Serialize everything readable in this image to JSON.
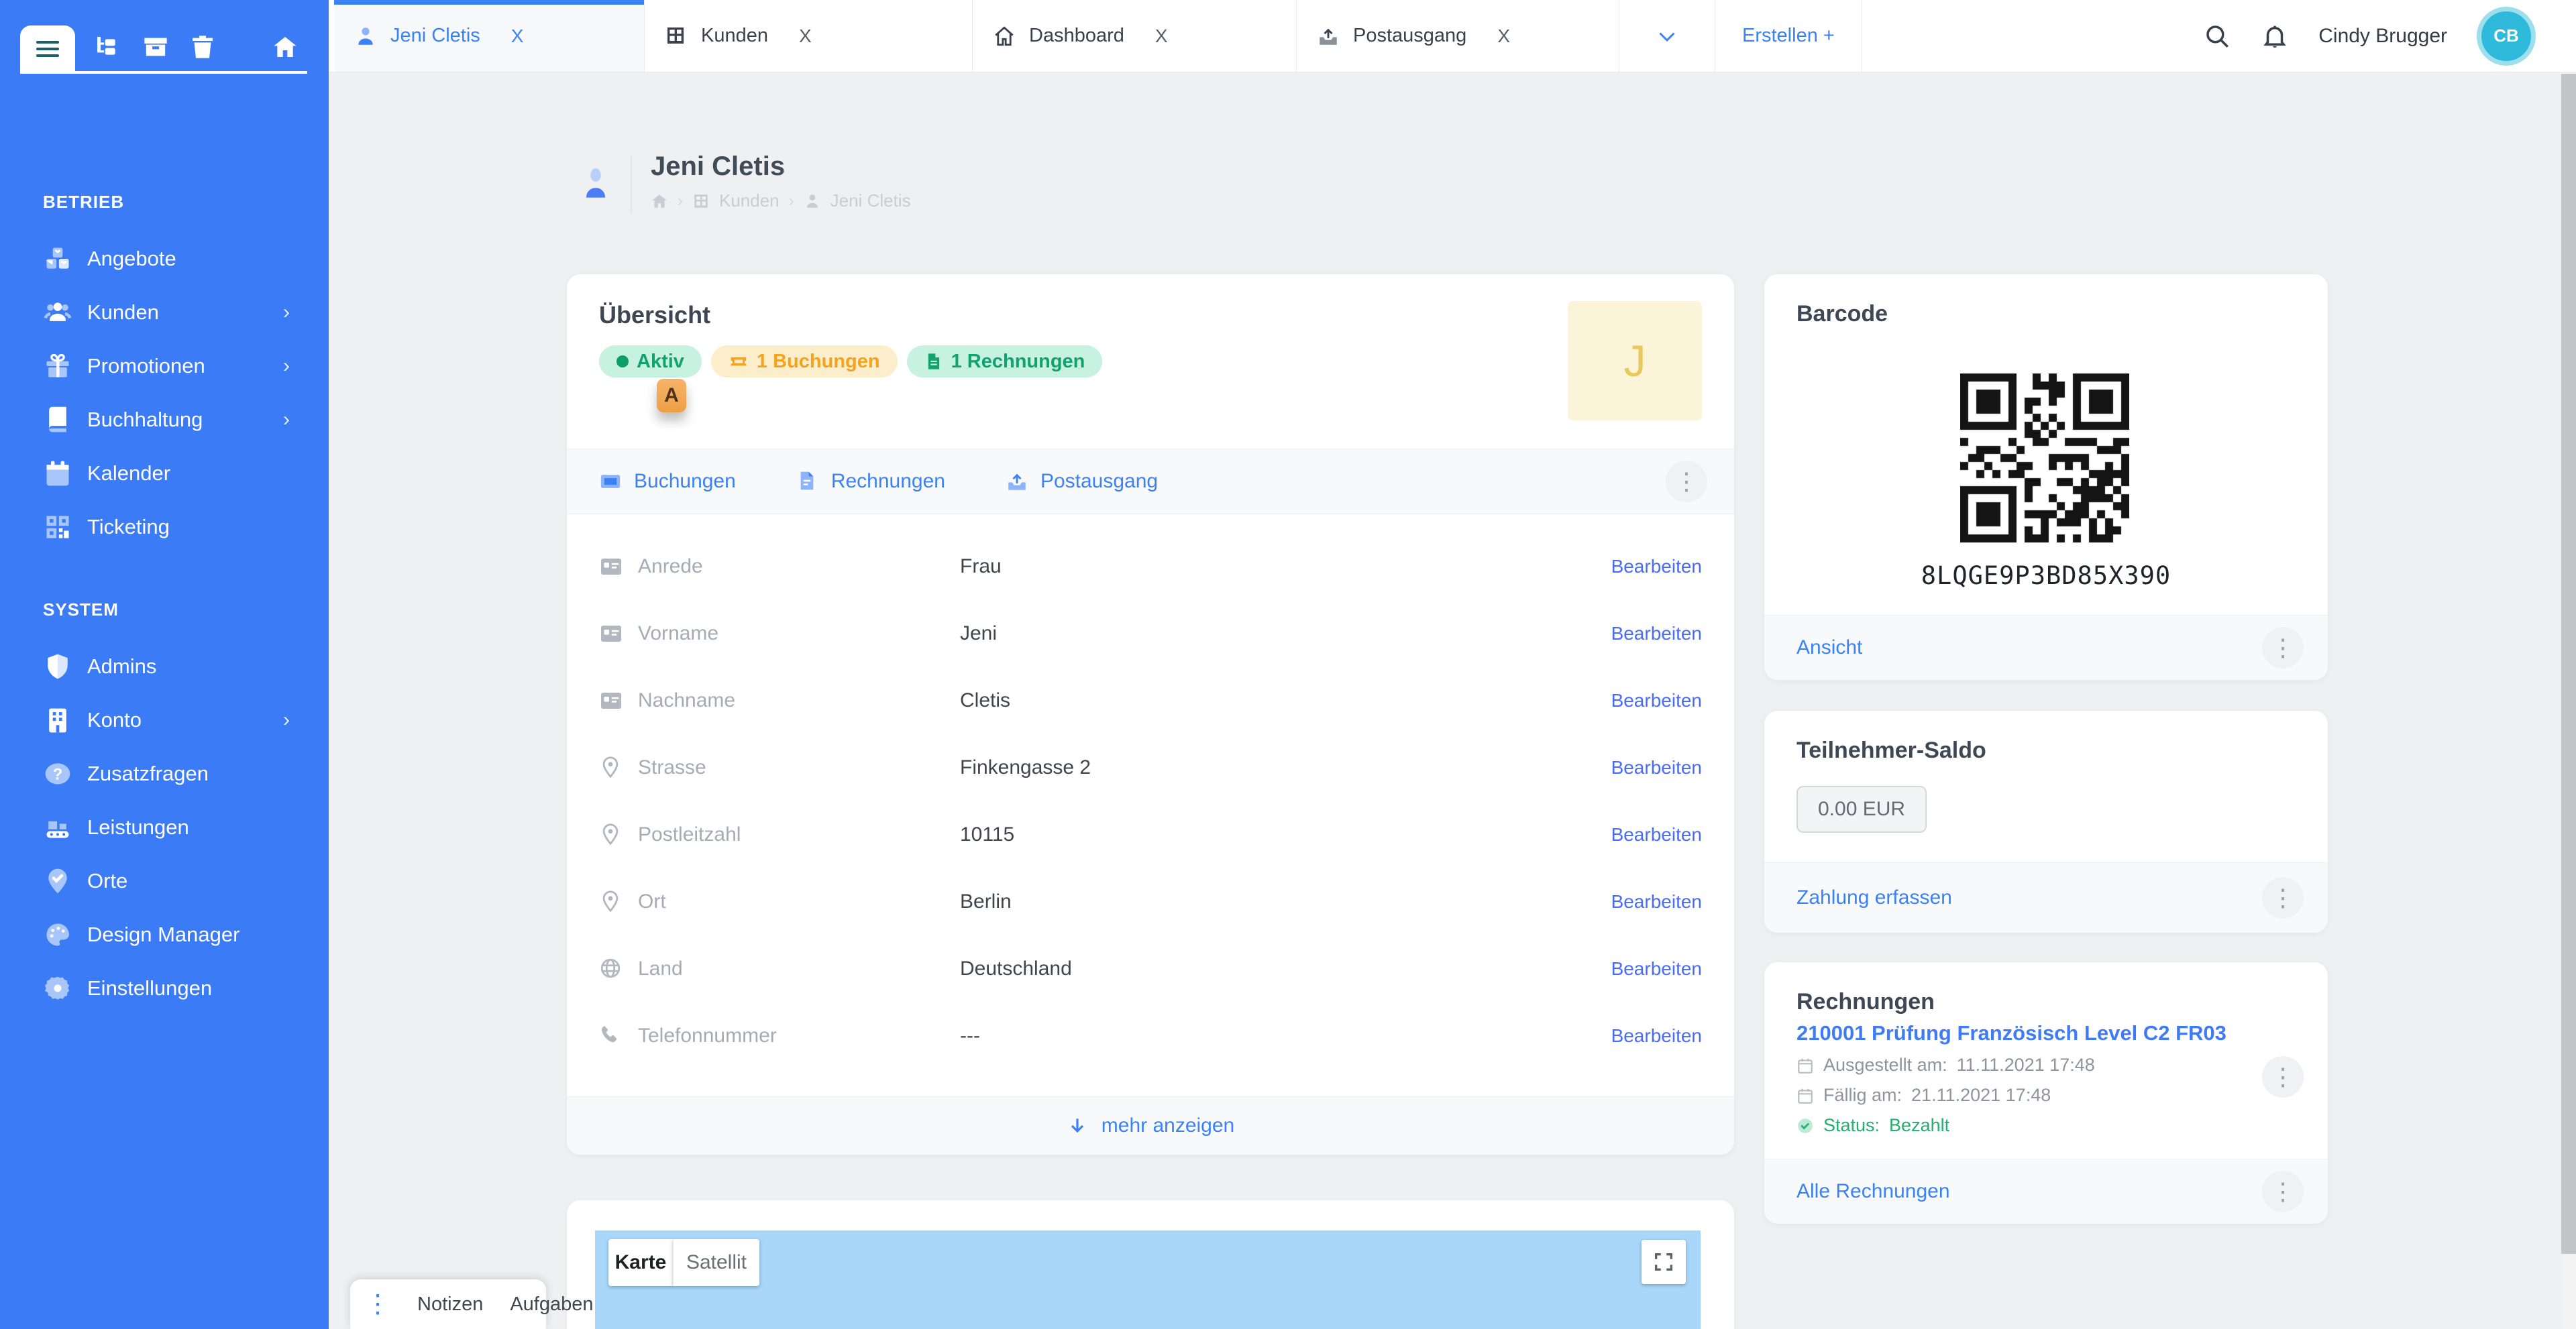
{
  "sidebar": {
    "sections": [
      {
        "label": "BETRIEB",
        "items": [
          {
            "label": "Angebote",
            "icon": "cubes-icon",
            "chevron": false
          },
          {
            "label": "Kunden",
            "icon": "users-icon",
            "chevron": true
          },
          {
            "label": "Promotionen",
            "icon": "gift-icon",
            "chevron": true
          },
          {
            "label": "Buchhaltung",
            "icon": "book-icon",
            "chevron": true
          },
          {
            "label": "Kalender",
            "icon": "calendar-icon",
            "chevron": false
          },
          {
            "label": "Ticketing",
            "icon": "qr-icon",
            "chevron": false
          }
        ]
      },
      {
        "label": "SYSTEM",
        "items": [
          {
            "label": "Admins",
            "icon": "shield-icon",
            "chevron": false
          },
          {
            "label": "Konto",
            "icon": "building-icon",
            "chevron": true
          },
          {
            "label": "Zusatzfragen",
            "icon": "question-icon",
            "chevron": false
          },
          {
            "label": "Leistungen",
            "icon": "conveyor-icon",
            "chevron": false
          },
          {
            "label": "Orte",
            "icon": "pin-check-icon",
            "chevron": false
          },
          {
            "label": "Design Manager",
            "icon": "palette-icon",
            "chevron": false
          },
          {
            "label": "Einstellungen",
            "icon": "gear-icon",
            "chevron": false
          }
        ]
      }
    ]
  },
  "tabbar": {
    "tabs": [
      {
        "label": "Jeni Cletis",
        "icon": "user-icon",
        "active": true
      },
      {
        "label": "Kunden",
        "icon": "grid-icon",
        "active": false
      },
      {
        "label": "Dashboard",
        "icon": "home-icon",
        "active": false
      },
      {
        "label": "Postausgang",
        "icon": "upload-icon",
        "active": false
      }
    ],
    "close_label": "X",
    "create_label": "Erstellen +"
  },
  "topbar": {
    "user_name": "Cindy Brugger",
    "user_initials": "CB"
  },
  "page": {
    "title": "Jeni Cletis",
    "breadcrumb": {
      "kunden": "Kunden",
      "current": "Jeni Cletis"
    }
  },
  "overview": {
    "title": "Übersicht",
    "badges": [
      {
        "label": "Aktiv",
        "style": "green"
      },
      {
        "label": "1 Buchungen",
        "style": "orange"
      },
      {
        "label": "1 Rechnungen",
        "style": "green"
      }
    ],
    "marker_letter": "A",
    "avatar_letter": "J",
    "tabs": [
      {
        "label": "Buchungen"
      },
      {
        "label": "Rechnungen"
      },
      {
        "label": "Postausgang"
      }
    ],
    "edit_label": "Bearbeiten",
    "fields": [
      {
        "label": "Anrede",
        "value": "Frau"
      },
      {
        "label": "Vorname",
        "value": "Jeni"
      },
      {
        "label": "Nachname",
        "value": "Cletis"
      },
      {
        "label": "Strasse",
        "value": "Finkengasse 2"
      },
      {
        "label": "Postleitzahl",
        "value": "10115"
      },
      {
        "label": "Ort",
        "value": "Berlin"
      },
      {
        "label": "Land",
        "value": "Deutschland"
      },
      {
        "label": "Telefonnummer",
        "value": "---"
      }
    ],
    "more_label": "mehr anzeigen"
  },
  "map": {
    "layer_map": "Karte",
    "layer_satellite": "Satellit"
  },
  "barcode": {
    "title": "Barcode",
    "code": "8LQGE9P3BD85X390",
    "action": "Ansicht"
  },
  "saldo": {
    "title": "Teilnehmer-Saldo",
    "amount": "0.00 EUR",
    "action": "Zahlung erfassen"
  },
  "invoices": {
    "title": "Rechnungen",
    "invoice": {
      "title": "210001 Prüfung Französisch Level C2 FR03",
      "issued_label": "Ausgestellt am:",
      "issued": "11.11.2021 17:48",
      "due_label": "Fällig am:",
      "due": "21.11.2021 17:48",
      "status_label": "Status:",
      "status": "Bezahlt"
    },
    "action": "Alle Rechnungen"
  },
  "dock": {
    "notes": "Notizen",
    "tasks": "Aufgaben"
  },
  "colors": {
    "accent": "#3b82f6",
    "sidebar": "#3b7cf6",
    "green": "#10a36d",
    "orange": "#f5a31c"
  }
}
